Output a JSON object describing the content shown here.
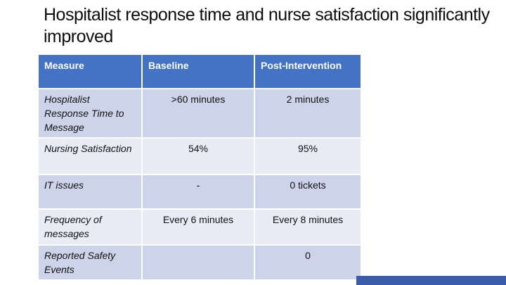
{
  "slide": {
    "title": "Hospitalist response time and nurse satisfaction significantly improved"
  },
  "table": {
    "headers": [
      "Measure",
      "Baseline",
      "Post-Intervention"
    ],
    "rows": [
      {
        "measure": "Hospitalist Response Time to Message",
        "baseline": ">60 minutes",
        "post": "2 minutes"
      },
      {
        "measure": "Nursing Satisfaction",
        "baseline": "54%",
        "post": "95%"
      },
      {
        "measure": "IT issues",
        "baseline": "-",
        "post": "0 tickets"
      },
      {
        "measure": "Frequency of messages",
        "baseline": "Every 6 minutes",
        "post": "Every 8 minutes"
      },
      {
        "measure": "Reported Safety Events",
        "baseline": "",
        "post": "0"
      }
    ]
  },
  "colors": {
    "background": "#ffffff",
    "title_text": "#0d0d0d",
    "header_bg": "#4472c4",
    "header_text": "#ffffff",
    "band_dark": "#cdd4ea",
    "band_light": "#e9ebf5",
    "accent_bar": "#3a5ca9"
  }
}
